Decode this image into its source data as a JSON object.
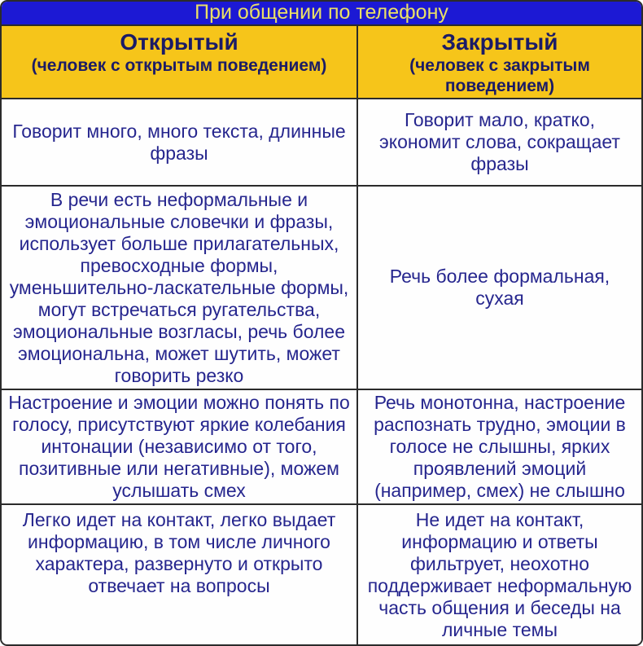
{
  "title": "При общении по телефону",
  "columns": [
    {
      "heading": "Открытый",
      "subheading": "(человек с открытым поведением)"
    },
    {
      "heading": "Закрытый",
      "subheading": "(человек с закрытым поведением)"
    }
  ],
  "rows": [
    {
      "open": "Говорит много, много текста, длинные фразы",
      "closed": "Говорит мало, кратко, экономит слова, сокращает фразы"
    },
    {
      "open": "В речи есть неформальные и эмоциональные словечки и фразы, использует больше прилагательных, превосходные формы, уменьшительно-ласкательные формы, могут встречаться ругательства, эмоциональные возгласы, речь более эмоциональна, может шутить, может говорить резко",
      "closed": "Речь более формальная, сухая"
    },
    {
      "open": "Настроение и эмоции можно понять по голосу, присутствуют яркие колебания интонации (независимо от того, позитивные или негативные), можем услышать смех",
      "closed": "Речь монотонна, настроение распознать трудно, эмоции в голосе не слышны, ярких проявлений эмоций (например, смех) не слышно"
    },
    {
      "open": "Легко идет на контакт, легко выдает информацию, в том числе личного характера, развернуто и открыто отвечает на вопросы",
      "closed": "Не идет на контакт, информацию и ответы фильтрует, неохотно поддерживает неформальную часть общения и беседы на личные темы"
    }
  ],
  "colors": {
    "title_bg": "#1c19d4",
    "title_text": "#eae065",
    "header_bg": "#f6c51a",
    "header_text": "#1b1b66",
    "body_bg": "#fefefe",
    "body_text": "#26268e",
    "border": "#2b2b2b"
  }
}
